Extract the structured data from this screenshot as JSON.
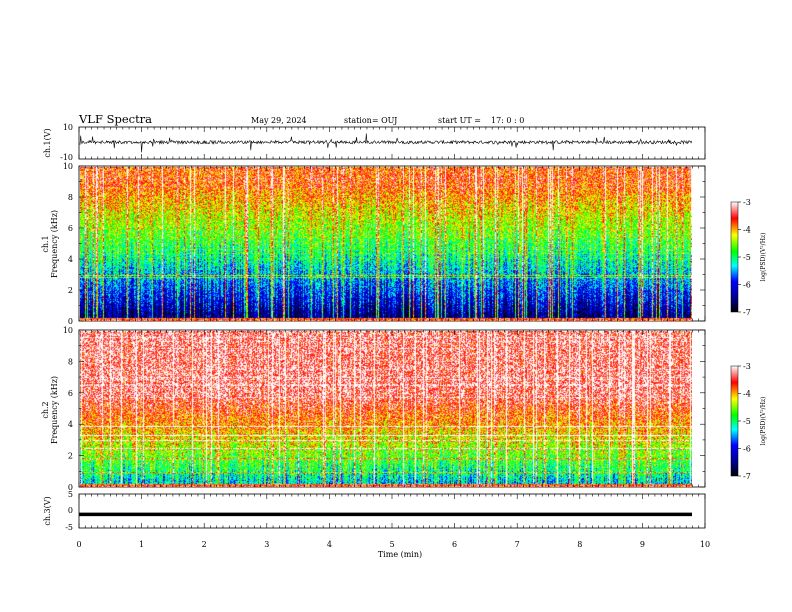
{
  "header": {
    "title": "VLF Spectra",
    "date": "May 29, 2024",
    "station": "station= OUJ",
    "start_label": "start  UT =",
    "start_time": "17: 0  : 0"
  },
  "chart_data": [
    {
      "type": "line",
      "panel": "ch1-waveform",
      "ylabel": "ch.1(V)",
      "ylim": [
        -10,
        10
      ],
      "yticks": [
        "10",
        "-10"
      ],
      "xlim": [
        0,
        10
      ],
      "signal": {
        "baseline": 0.5,
        "spread": 1.0,
        "spike_max": 7
      }
    },
    {
      "type": "heatmap",
      "panel": "ch1-spectrogram",
      "ylabel_line1": "ch.1",
      "ylabel_line2": "Frequency  (kHz)",
      "ylim": [
        0,
        10
      ],
      "yticks": [
        "0",
        "2",
        "4",
        "6",
        "8",
        "10"
      ],
      "xlim": [
        0,
        9.8
      ],
      "description_values": {
        "low_band_log_psd": -6.5,
        "high_band_log_psd": -3.7
      },
      "colorbar": {
        "label": "log(PSD)(V²/Hz)",
        "ticks": [
          "-3",
          "-4",
          "-5",
          "-6",
          "-7"
        ],
        "range": [
          -7,
          -3
        ]
      }
    },
    {
      "type": "heatmap",
      "panel": "ch2-spectrogram",
      "ylabel_line1": "ch.2",
      "ylabel_line2": "Frequency  (kHz)",
      "ylim": [
        0,
        10
      ],
      "yticks": [
        "0",
        "2",
        "4",
        "6",
        "8",
        "10"
      ],
      "xlim": [
        0,
        9.8
      ],
      "description_values": {
        "low_band_log_psd": -5.3,
        "high_band_log_psd": -3.3
      },
      "colorbar": {
        "label": "log(PSD)(V²/Hz)",
        "ticks": [
          "-3",
          "-4",
          "-5",
          "-6",
          "-7"
        ],
        "range": [
          -7,
          -3
        ]
      }
    },
    {
      "type": "line",
      "panel": "ch3-waveform",
      "ylabel": "ch.3(V)",
      "ylim": [
        -5,
        5
      ],
      "yticks": [
        "5",
        "0",
        "-5"
      ],
      "xlim": [
        0,
        10
      ],
      "signal": {
        "constant": -1.0
      }
    }
  ],
  "xaxis": {
    "label": "Time  (min)",
    "range": [
      0,
      10
    ],
    "ticks": [
      "0",
      "1",
      "2",
      "3",
      "4",
      "5",
      "6",
      "7",
      "8",
      "9",
      "10"
    ]
  },
  "colors": {
    "colormap": [
      "#000000",
      "#00008b",
      "#0000ff",
      "#00ffff",
      "#00ff00",
      "#ffff00",
      "#ff0000",
      "#ffffff"
    ]
  }
}
